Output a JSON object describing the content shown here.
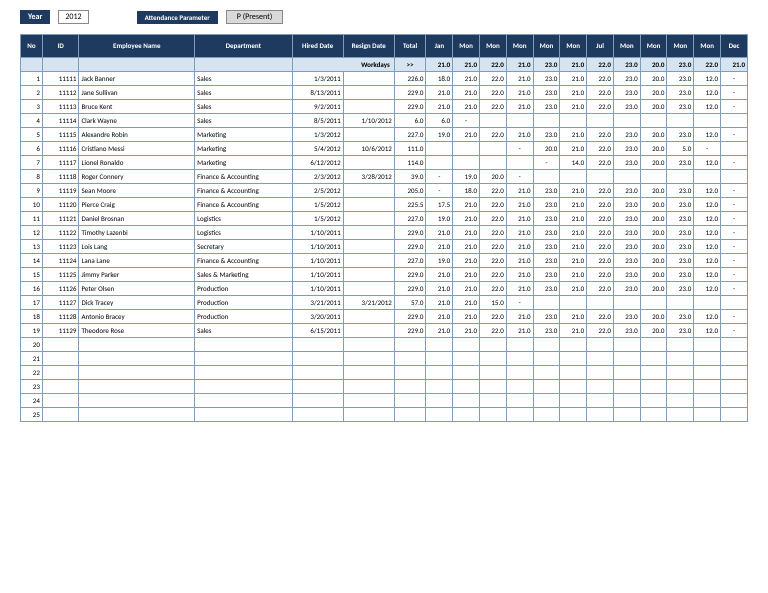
{
  "controls": {
    "year_label": "Year",
    "year_value": "2012",
    "param_label": "Attendance Parameter",
    "param_value": "P (Present)"
  },
  "headers": [
    "No",
    "ID",
    "Employee Name",
    "Department",
    "Hired Date",
    "Resign Date",
    "Total",
    "Jan",
    "Mon",
    "Mon",
    "Mon",
    "Mon",
    "Mon",
    "Jul",
    "Mon",
    "Mon",
    "Mon",
    "Mon",
    "Dec"
  ],
  "subhead": {
    "workdays_label": "Workdays",
    "arrow": ">>",
    "values": [
      "21.0",
      "21.0",
      "22.0",
      "21.0",
      "23.0",
      "21.0",
      "22.0",
      "23.0",
      "20.0",
      "23.0",
      "22.0",
      "21.0"
    ]
  },
  "rows": [
    {
      "no": "1",
      "id": "11111",
      "name": "Jack Banner",
      "dept": "Sales",
      "hired": "1/3/2011",
      "resign": "",
      "total": "226.0",
      "m": [
        "18.0",
        "21.0",
        "22.0",
        "21.0",
        "23.0",
        "21.0",
        "22.0",
        "23.0",
        "20.0",
        "23.0",
        "12.0",
        "-"
      ]
    },
    {
      "no": "2",
      "id": "11112",
      "name": "Jane Sullivan",
      "dept": "Sales",
      "hired": "8/13/2011",
      "resign": "",
      "total": "229.0",
      "m": [
        "21.0",
        "21.0",
        "22.0",
        "21.0",
        "23.0",
        "21.0",
        "22.0",
        "23.0",
        "20.0",
        "23.0",
        "12.0",
        "-"
      ]
    },
    {
      "no": "3",
      "id": "11113",
      "name": "Bruce Kent",
      "dept": "Sales",
      "hired": "9/2/2011",
      "resign": "",
      "total": "229.0",
      "m": [
        "21.0",
        "21.0",
        "22.0",
        "21.0",
        "23.0",
        "21.0",
        "22.0",
        "23.0",
        "20.0",
        "23.0",
        "12.0",
        "-"
      ]
    },
    {
      "no": "4",
      "id": "11114",
      "name": "Clark Wayne",
      "dept": "Sales",
      "hired": "8/5/2011",
      "resign": "1/10/2012",
      "total": "6.0",
      "m": [
        "6.0",
        "-",
        "",
        "",
        "",
        "",
        "",
        "",
        "",
        "",
        "",
        ""
      ]
    },
    {
      "no": "5",
      "id": "11115",
      "name": "Alexandre Robin",
      "dept": "Marketing",
      "hired": "1/3/2012",
      "resign": "",
      "total": "227.0",
      "m": [
        "19.0",
        "21.0",
        "22.0",
        "21.0",
        "23.0",
        "21.0",
        "22.0",
        "23.0",
        "20.0",
        "23.0",
        "12.0",
        "-"
      ]
    },
    {
      "no": "6",
      "id": "11116",
      "name": "Cristiano Messi",
      "dept": "Marketing",
      "hired": "5/4/2012",
      "resign": "10/6/2012",
      "total": "111.0",
      "m": [
        "",
        "",
        "",
        "-",
        "20.0",
        "21.0",
        "22.0",
        "23.0",
        "20.0",
        "5.0",
        "-",
        ""
      ]
    },
    {
      "no": "7",
      "id": "11117",
      "name": "Lionel Ronaldo",
      "dept": "Marketing",
      "hired": "6/12/2012",
      "resign": "",
      "total": "114.0",
      "m": [
        "",
        "",
        "",
        "",
        "-",
        "14.0",
        "22.0",
        "23.0",
        "20.0",
        "23.0",
        "12.0",
        "-"
      ]
    },
    {
      "no": "8",
      "id": "11118",
      "name": "Roger Connery",
      "dept": "Finance & Accounting",
      "hired": "2/3/2012",
      "resign": "3/28/2012",
      "total": "39.0",
      "m": [
        "-",
        "19.0",
        "20.0",
        "-",
        "",
        "",
        "",
        "",
        "",
        "",
        "",
        ""
      ]
    },
    {
      "no": "9",
      "id": "11119",
      "name": "Sean Moore",
      "dept": "Finance & Accounting",
      "hired": "2/5/2012",
      "resign": "",
      "total": "205.0",
      "m": [
        "-",
        "18.0",
        "22.0",
        "21.0",
        "23.0",
        "21.0",
        "22.0",
        "23.0",
        "20.0",
        "23.0",
        "12.0",
        "-"
      ]
    },
    {
      "no": "10",
      "id": "11120",
      "name": "Pierce Craig",
      "dept": "Finance & Accounting",
      "hired": "1/5/2012",
      "resign": "",
      "total": "225.5",
      "m": [
        "17.5",
        "21.0",
        "22.0",
        "21.0",
        "23.0",
        "21.0",
        "22.0",
        "23.0",
        "20.0",
        "23.0",
        "12.0",
        "-"
      ]
    },
    {
      "no": "11",
      "id": "11121",
      "name": "Daniel Brosnan",
      "dept": "Logistics",
      "hired": "1/5/2012",
      "resign": "",
      "total": "227.0",
      "m": [
        "19.0",
        "21.0",
        "22.0",
        "21.0",
        "23.0",
        "21.0",
        "22.0",
        "23.0",
        "20.0",
        "23.0",
        "12.0",
        "-"
      ]
    },
    {
      "no": "12",
      "id": "11122",
      "name": "Timothy Lazenbi",
      "dept": "Logistics",
      "hired": "1/10/2011",
      "resign": "",
      "total": "229.0",
      "m": [
        "21.0",
        "21.0",
        "22.0",
        "21.0",
        "23.0",
        "21.0",
        "22.0",
        "23.0",
        "20.0",
        "23.0",
        "12.0",
        "-"
      ]
    },
    {
      "no": "13",
      "id": "11123",
      "name": "Lois Lang",
      "dept": "Secretary",
      "hired": "1/10/2011",
      "resign": "",
      "total": "229.0",
      "m": [
        "21.0",
        "21.0",
        "22.0",
        "21.0",
        "23.0",
        "21.0",
        "22.0",
        "23.0",
        "20.0",
        "23.0",
        "12.0",
        "-"
      ]
    },
    {
      "no": "14",
      "id": "11124",
      "name": "Lana Lane",
      "dept": "Finance & Accounting",
      "hired": "1/10/2011",
      "resign": "",
      "total": "227.0",
      "m": [
        "19.0",
        "21.0",
        "22.0",
        "21.0",
        "23.0",
        "21.0",
        "22.0",
        "23.0",
        "20.0",
        "23.0",
        "12.0",
        "-"
      ]
    },
    {
      "no": "15",
      "id": "11125",
      "name": "Jimmy Parker",
      "dept": "Sales & Marketing",
      "hired": "1/10/2011",
      "resign": "",
      "total": "229.0",
      "m": [
        "21.0",
        "21.0",
        "22.0",
        "21.0",
        "23.0",
        "21.0",
        "22.0",
        "23.0",
        "20.0",
        "23.0",
        "12.0",
        "-"
      ]
    },
    {
      "no": "16",
      "id": "11126",
      "name": "Peter Olsen",
      "dept": "Production",
      "hired": "1/10/2011",
      "resign": "",
      "total": "229.0",
      "m": [
        "21.0",
        "21.0",
        "22.0",
        "21.0",
        "23.0",
        "21.0",
        "22.0",
        "23.0",
        "20.0",
        "23.0",
        "12.0",
        "-"
      ]
    },
    {
      "no": "17",
      "id": "11127",
      "name": "Dick Tracey",
      "dept": "Production",
      "hired": "3/21/2011",
      "resign": "3/21/2012",
      "total": "57.0",
      "m": [
        "21.0",
        "21.0",
        "15.0",
        "-",
        "",
        "",
        "",
        "",
        "",
        "",
        "",
        ""
      ]
    },
    {
      "no": "18",
      "id": "11128",
      "name": "Antonio Bracey",
      "dept": "Production",
      "hired": "3/20/2011",
      "resign": "",
      "total": "229.0",
      "m": [
        "21.0",
        "21.0",
        "22.0",
        "21.0",
        "23.0",
        "21.0",
        "22.0",
        "23.0",
        "20.0",
        "23.0",
        "12.0",
        "-"
      ]
    },
    {
      "no": "19",
      "id": "11129",
      "name": "Theodore Rose",
      "dept": "Sales",
      "hired": "6/15/2011",
      "resign": "",
      "total": "229.0",
      "m": [
        "21.0",
        "21.0",
        "22.0",
        "21.0",
        "23.0",
        "21.0",
        "22.0",
        "23.0",
        "20.0",
        "23.0",
        "12.0",
        "-"
      ]
    }
  ],
  "empty_rows": 6
}
